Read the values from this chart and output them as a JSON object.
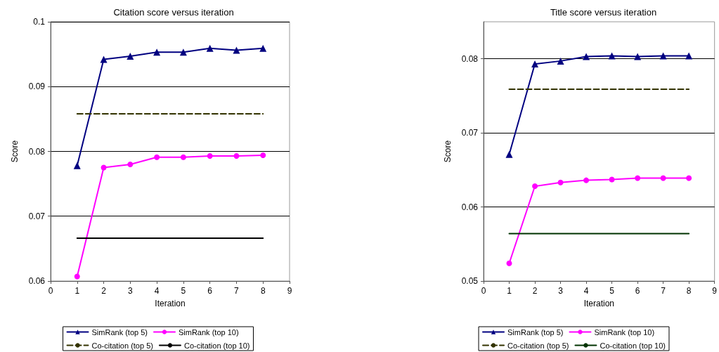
{
  "chart_data": [
    {
      "type": "line",
      "title": "Citation score versus iteration",
      "xlabel": "Iteration",
      "ylabel": "Score",
      "xlim": [
        0,
        9
      ],
      "xticks": [
        0,
        1,
        2,
        3,
        4,
        5,
        6,
        7,
        8,
        9
      ],
      "ylim": [
        0.06,
        0.1
      ],
      "yticks": [
        0.06,
        0.07,
        0.08,
        0.09,
        0.1
      ],
      "grid": "y",
      "legend": "bottom",
      "series": [
        {
          "name": "SimRank (top 5)",
          "color": "#000080",
          "marker": "triangle",
          "line_style": "solid",
          "x": [
            1,
            2,
            3,
            4,
            5,
            6,
            7,
            8
          ],
          "values": [
            0.0778,
            0.0942,
            0.0947,
            0.0953,
            0.0953,
            0.0959,
            0.0956,
            0.0959
          ]
        },
        {
          "name": "SimRank (top 10)",
          "color": "#ff00ff",
          "marker": "circle",
          "line_style": "solid",
          "x": [
            1,
            2,
            3,
            4,
            5,
            6,
            7,
            8
          ],
          "values": [
            0.0607,
            0.0775,
            0.078,
            0.0791,
            0.0791,
            0.0793,
            0.0793,
            0.0794
          ]
        },
        {
          "name": "Co-citation (top 5)",
          "color": "#333300",
          "marker": "none",
          "line_style": "dashed",
          "x": [
            1,
            8
          ],
          "values": [
            0.0858,
            0.0858
          ]
        },
        {
          "name": "Co-citation (top 10)",
          "color": "#000000",
          "marker": "none",
          "line_style": "solid",
          "x": [
            1,
            8
          ],
          "values": [
            0.0666,
            0.0666
          ]
        }
      ]
    },
    {
      "type": "line",
      "title": "Title score versus iteration",
      "xlabel": "Iteration",
      "ylabel": "Score",
      "xlim": [
        0,
        9
      ],
      "xticks": [
        0,
        1,
        2,
        3,
        4,
        5,
        6,
        7,
        8,
        9
      ],
      "ylim": [
        0.05,
        0.085
      ],
      "yticks": [
        0.05,
        0.06,
        0.07,
        0.08
      ],
      "grid": "y",
      "legend": "bottom",
      "series": [
        {
          "name": "SimRank (top 5)",
          "color": "#000080",
          "marker": "triangle",
          "line_style": "solid",
          "x": [
            1,
            2,
            3,
            4,
            5,
            6,
            7,
            8
          ],
          "values": [
            0.0671,
            0.0793,
            0.0797,
            0.0803,
            0.0804,
            0.0803,
            0.0804,
            0.0804
          ]
        },
        {
          "name": "SimRank (top 10)",
          "color": "#ff00ff",
          "marker": "circle",
          "line_style": "solid",
          "x": [
            1,
            2,
            3,
            4,
            5,
            6,
            7,
            8
          ],
          "values": [
            0.0524,
            0.0628,
            0.0633,
            0.0636,
            0.0637,
            0.0639,
            0.0639,
            0.0639
          ]
        },
        {
          "name": "Co-citation (top 5)",
          "color": "#333300",
          "marker": "none",
          "line_style": "dashed",
          "x": [
            1,
            8
          ],
          "values": [
            0.0759,
            0.0759
          ]
        },
        {
          "name": "Co-citation (top 10)",
          "color": "#003300",
          "marker": "none",
          "line_style": "solid",
          "x": [
            1,
            8
          ],
          "values": [
            0.0564,
            0.0564
          ]
        }
      ]
    }
  ]
}
